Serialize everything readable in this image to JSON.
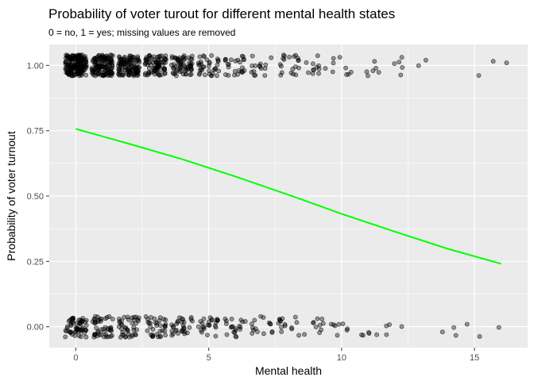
{
  "chart_data": {
    "type": "scatter",
    "title": "Probability of voter turout for different mental health states",
    "subtitle": "0 = no, 1 = yes; missing values are removed",
    "xlabel": "Mental health",
    "ylabel": "Probability of voter turnout",
    "xlim": [
      -1,
      17
    ],
    "ylim": [
      -0.08,
      1.08
    ],
    "x_ticks": [
      0,
      5,
      10,
      15
    ],
    "x_tick_labels": [
      "0",
      "5",
      "10",
      "15"
    ],
    "y_ticks": [
      0.0,
      0.25,
      0.5,
      0.75,
      1.0
    ],
    "y_tick_labels": [
      "0.00",
      "0.25",
      "0.50",
      "0.75",
      "1.00"
    ],
    "grid": true,
    "panel_background": "#ebebeb",
    "point_color": "#000000",
    "line_color": "#00ff00",
    "points": {
      "vote_1_counts": [
        [
          0,
          180
        ],
        [
          1,
          130
        ],
        [
          2,
          110
        ],
        [
          3,
          80
        ],
        [
          4,
          65
        ],
        [
          5,
          35
        ],
        [
          6,
          25
        ],
        [
          7,
          15
        ],
        [
          8,
          20
        ],
        [
          9,
          12
        ],
        [
          10,
          8
        ],
        [
          11,
          6
        ],
        [
          12,
          5
        ],
        [
          13,
          2
        ],
        [
          15,
          1
        ],
        [
          16,
          2
        ]
      ],
      "vote_0_counts": [
        [
          0,
          60
        ],
        [
          1,
          45
        ],
        [
          2,
          40
        ],
        [
          3,
          35
        ],
        [
          4,
          30
        ],
        [
          5,
          25
        ],
        [
          6,
          20
        ],
        [
          7,
          15
        ],
        [
          8,
          15
        ],
        [
          9,
          10
        ],
        [
          10,
          8
        ],
        [
          11,
          5
        ],
        [
          12,
          4
        ],
        [
          14,
          3
        ],
        [
          15,
          2
        ],
        [
          16,
          1
        ]
      ]
    },
    "series": [
      {
        "type": "line",
        "x": [
          0,
          2,
          4,
          6,
          8,
          10,
          12,
          14,
          16
        ],
        "y": [
          0.757,
          0.7,
          0.641,
          0.575,
          0.505,
          0.432,
          0.364,
          0.298,
          0.241
        ]
      }
    ]
  }
}
